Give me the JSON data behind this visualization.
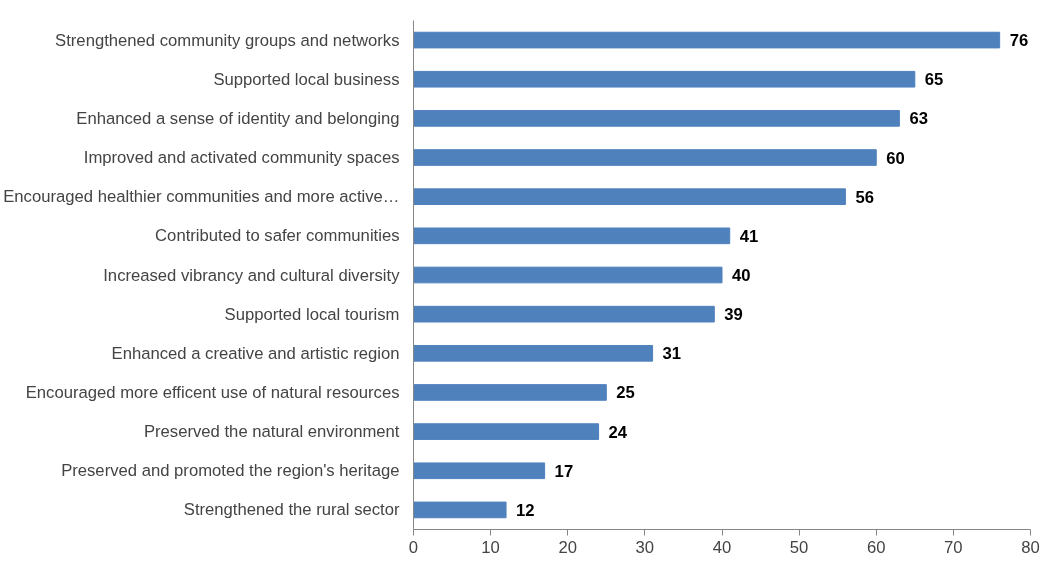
{
  "chart_data": {
    "type": "bar",
    "orientation": "horizontal",
    "categories": [
      "Strengthened community groups and networks",
      "Supported local business",
      "Enhanced a sense of identity and belonging",
      "Improved and activated community spaces",
      "Encouraged healthier communities and more active…",
      "Contributed to safer communities",
      "Increased vibrancy and cultural diversity",
      "Supported local tourism",
      "Enhanced a creative and artistic region",
      "Encouraged more efficent use of natural resources",
      "Preserved the natural environment",
      "Preserved and promoted the region's heritage",
      "Strengthened the rural sector"
    ],
    "values": [
      76,
      65,
      63,
      60,
      56,
      41,
      40,
      39,
      31,
      25,
      24,
      17,
      12
    ],
    "color": "#4f81bd",
    "data_labels": true,
    "xlim": [
      0,
      80
    ],
    "xticks": [
      0,
      10,
      20,
      30,
      40,
      50,
      60,
      70,
      80
    ],
    "grid": false
  }
}
